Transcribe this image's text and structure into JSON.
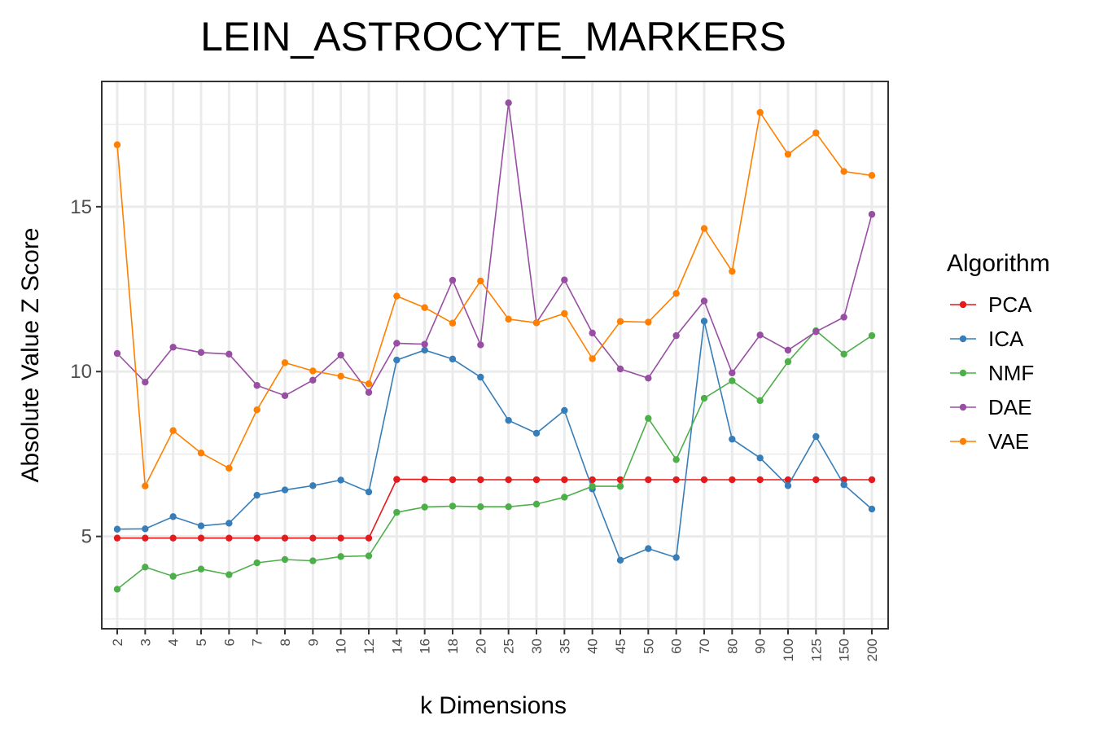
{
  "chart_data": {
    "type": "line",
    "title": "LEIN_ASTROCYTE_MARKERS",
    "xlabel": "k Dimensions",
    "ylabel": "Absolute Value Z Score",
    "categories": [
      "2",
      "3",
      "4",
      "5",
      "6",
      "7",
      "8",
      "9",
      "10",
      "12",
      "14",
      "16",
      "18",
      "20",
      "25",
      "30",
      "35",
      "40",
      "45",
      "50",
      "60",
      "70",
      "80",
      "90",
      "100",
      "125",
      "150",
      "200"
    ],
    "ylim": [
      2.2,
      18.8
    ],
    "yticks": [
      5,
      10,
      15
    ],
    "ytick_labels": [
      "5",
      "10",
      "15"
    ],
    "grid": true,
    "legend": {
      "title": "Algorithm",
      "position": "right"
    },
    "series": [
      {
        "name": "PCA",
        "color": "#E41A1C",
        "values": [
          4.95,
          4.95,
          4.95,
          4.95,
          4.95,
          4.95,
          4.95,
          4.95,
          4.95,
          4.95,
          6.73,
          6.73,
          6.72,
          6.72,
          6.72,
          6.72,
          6.72,
          6.72,
          6.72,
          6.72,
          6.72,
          6.72,
          6.72,
          6.72,
          6.72,
          6.72,
          6.72,
          6.72
        ]
      },
      {
        "name": "ICA",
        "color": "#377EB8",
        "values": [
          5.22,
          5.23,
          5.6,
          5.32,
          5.4,
          6.25,
          6.41,
          6.54,
          6.71,
          6.35,
          10.35,
          10.65,
          10.38,
          9.83,
          8.52,
          8.13,
          8.82,
          6.44,
          4.28,
          4.63,
          4.36,
          11.53,
          7.95,
          7.38,
          6.54,
          8.03,
          6.57,
          5.83
        ]
      },
      {
        "name": "NMF",
        "color": "#4DAF4A",
        "values": [
          3.4,
          4.07,
          3.79,
          4.01,
          3.84,
          4.2,
          4.3,
          4.26,
          4.39,
          4.41,
          5.73,
          5.89,
          5.92,
          5.9,
          5.9,
          5.98,
          6.19,
          6.52,
          6.52,
          8.58,
          7.33,
          9.19,
          9.72,
          9.12,
          10.3,
          11.24,
          10.53,
          11.09
        ]
      },
      {
        "name": "DAE",
        "color": "#984EA3",
        "values": [
          10.55,
          9.68,
          10.74,
          10.58,
          10.53,
          9.58,
          9.27,
          9.74,
          10.5,
          9.37,
          10.86,
          10.83,
          12.77,
          10.81,
          18.15,
          11.48,
          12.78,
          11.17,
          10.08,
          9.8,
          11.09,
          12.14,
          9.96,
          11.11,
          10.65,
          11.21,
          11.65,
          14.77
        ]
      },
      {
        "name": "VAE",
        "color": "#FF7F00",
        "values": [
          16.88,
          6.53,
          8.21,
          7.53,
          7.07,
          8.84,
          10.27,
          10.02,
          9.86,
          9.63,
          12.29,
          11.94,
          11.47,
          12.75,
          11.59,
          11.48,
          11.76,
          10.39,
          11.52,
          11.5,
          12.37,
          14.34,
          13.04,
          17.86,
          16.59,
          17.24,
          16.07,
          15.95
        ]
      }
    ]
  }
}
